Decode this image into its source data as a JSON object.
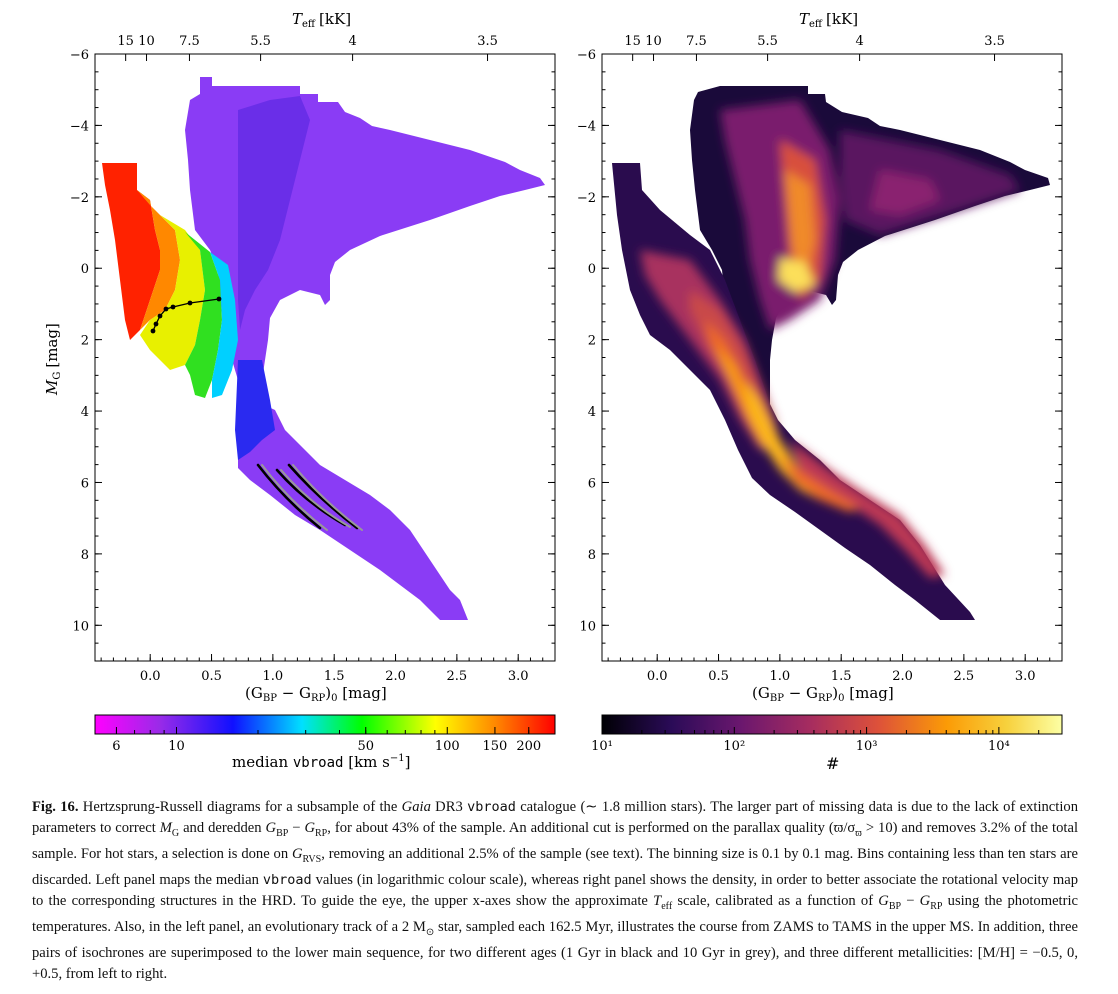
{
  "left_panel": {
    "top_axis_label": "T",
    "top_axis_sub": "eff",
    "top_axis_unit": "[kK]",
    "y_label": "M",
    "y_label_sub": "G",
    "y_label_unit": "[mag]",
    "x_label": "(G",
    "x_label_sub1": "BP",
    "x_label_mid": " − G",
    "x_label_sub2": "RP",
    "x_label_end": ")",
    "x_label_sub3": "0",
    "x_label_unit": " [mag]",
    "colorbar_label_prefix": "median ",
    "colorbar_label_mono": "vbroad",
    "colorbar_label_unit": " [km s",
    "colorbar_label_exp": "−1",
    "colorbar_label_close": "]"
  },
  "right_panel": {
    "top_axis_label": "T",
    "top_axis_sub": "eff",
    "top_axis_unit": "[kK]",
    "x_label": "(G",
    "x_label_sub1": "BP",
    "x_label_mid": " − G",
    "x_label_sub2": "RP",
    "x_label_end": ")",
    "x_label_sub3": "0",
    "x_label_unit": " [mag]",
    "colorbar_label": "#"
  },
  "chart_data": [
    {
      "type": "heatmap",
      "panel": "left",
      "xlabel": "(GBP − GRP)0 [mag]",
      "ylabel": "MG [mag]",
      "top_xlabel": "Teff [kK]",
      "xlim": [
        -0.45,
        3.3
      ],
      "ylim": [
        11,
        -6
      ],
      "x_ticks": [
        "0.0",
        "0.5",
        "1.0",
        "1.5",
        "2.0",
        "2.5",
        "3.0"
      ],
      "x_tick_values": [
        0,
        0.5,
        1.0,
        1.5,
        2.0,
        2.5,
        3.0
      ],
      "y_ticks": [
        "−6",
        "−4",
        "−2",
        "0",
        "2",
        "4",
        "6",
        "8",
        "10"
      ],
      "y_tick_values": [
        -6,
        -4,
        -2,
        0,
        2,
        4,
        6,
        8,
        10
      ],
      "top_ticks": [
        "15",
        "10",
        "7.5",
        "5.5",
        "4",
        "3.5"
      ],
      "top_tick_values": [
        -0.2,
        -0.03,
        0.32,
        0.9,
        1.65,
        2.75
      ],
      "colorbar": {
        "label": "median vbroad [km s−1]",
        "scale": "log",
        "range": [
          5,
          250
        ],
        "ticks": [
          "6",
          "10",
          "50",
          "100",
          "150",
          "200"
        ],
        "tick_values": [
          6,
          10,
          50,
          100,
          150,
          200
        ],
        "colors": [
          "#ff00ff",
          "#8a2be2",
          "#0000ff",
          "#00e0ff",
          "#00ff00",
          "#ffff00",
          "#ff8000",
          "#ff0000"
        ]
      },
      "track": {
        "name": "2 Msun evolutionary track",
        "x": [
          0.02,
          0.05,
          0.09,
          0.16,
          0.3,
          0.55
        ],
        "y": [
          1.75,
          1.55,
          1.35,
          1.2,
          1.05,
          0.95
        ]
      },
      "isochrones": {
        "ages": [
          "1 Gyr",
          "10 Gyr"
        ],
        "colors": [
          "#000000",
          "#999999"
        ],
        "metallicities": [
          "−0.5",
          "0",
          "+0.5"
        ]
      }
    },
    {
      "type": "heatmap",
      "panel": "right",
      "xlabel": "(GBP − GRP)0 [mag]",
      "top_xlabel": "Teff [kK]",
      "xlim": [
        -0.45,
        3.3
      ],
      "ylim": [
        11,
        -6
      ],
      "x_ticks": [
        "0.0",
        "0.5",
        "1.0",
        "1.5",
        "2.0",
        "2.5",
        "3.0"
      ],
      "y_ticks": [
        "−6",
        "−4",
        "−2",
        "0",
        "2",
        "4",
        "6",
        "8",
        "10"
      ],
      "top_ticks": [
        "15",
        "10",
        "7.5",
        "5.5",
        "4",
        "3.5"
      ],
      "colorbar": {
        "label": "#",
        "scale": "log",
        "range": [
          10,
          30000
        ],
        "ticks": [
          "10¹",
          "10²",
          "10³",
          "10⁴"
        ],
        "tick_values": [
          10,
          100,
          1000,
          10000
        ],
        "colors": [
          "#000004",
          "#320a5e",
          "#781c6d",
          "#bc3754",
          "#ed6925",
          "#fbb61a",
          "#fcffa4"
        ]
      }
    }
  ],
  "caption": {
    "label": "Fig. 16.",
    "parts": [
      " Hertzsprung-Russell diagrams for a subsample of the ",
      "Gaia",
      " DR3 ",
      "vbroad",
      " catalogue (∼ 1.8 million stars). The larger part of missing data is due to the lack of extinction parameters to correct ",
      "M",
      "G",
      " and deredden ",
      "G",
      "BP",
      " − ",
      "G",
      "RP",
      ", for about 43% of the sample. An additional cut is performed on the parallax quality (ϖ/σ",
      "ϖ",
      " > 10) and removes 3.2% of the total sample. For hot stars, a selection is done on ",
      "G",
      "RVS",
      ", removing an additional 2.5% of the sample (see text). The binning size is 0.1 by 0.1 mag. Bins containing less than ten stars are discarded. Left panel maps the median ",
      "vbroad",
      " values (in logarithmic colour scale), whereas right panel shows the density, in order to better associate the rotational velocity map to the corresponding structures in the HRD. To guide the eye, the upper x-axes show the approximate ",
      "T",
      "eff",
      " scale, calibrated as a function of ",
      "G",
      "BP",
      " − ",
      "G",
      "RP",
      " using the photometric temperatures. Also, in the left panel, an evolutionary track of a 2 M",
      "⊙",
      " star, sampled each 162.5 Myr, illustrates the course from ZAMS to TAMS in the upper MS. In addition, three pairs of isochrones are superimposed to the lower main sequence, for two different ages (1 Gyr in black and 10 Gyr in grey), and three different metallicities: [M/H] = −0.5, 0, +0.5, from left to right."
    ]
  }
}
